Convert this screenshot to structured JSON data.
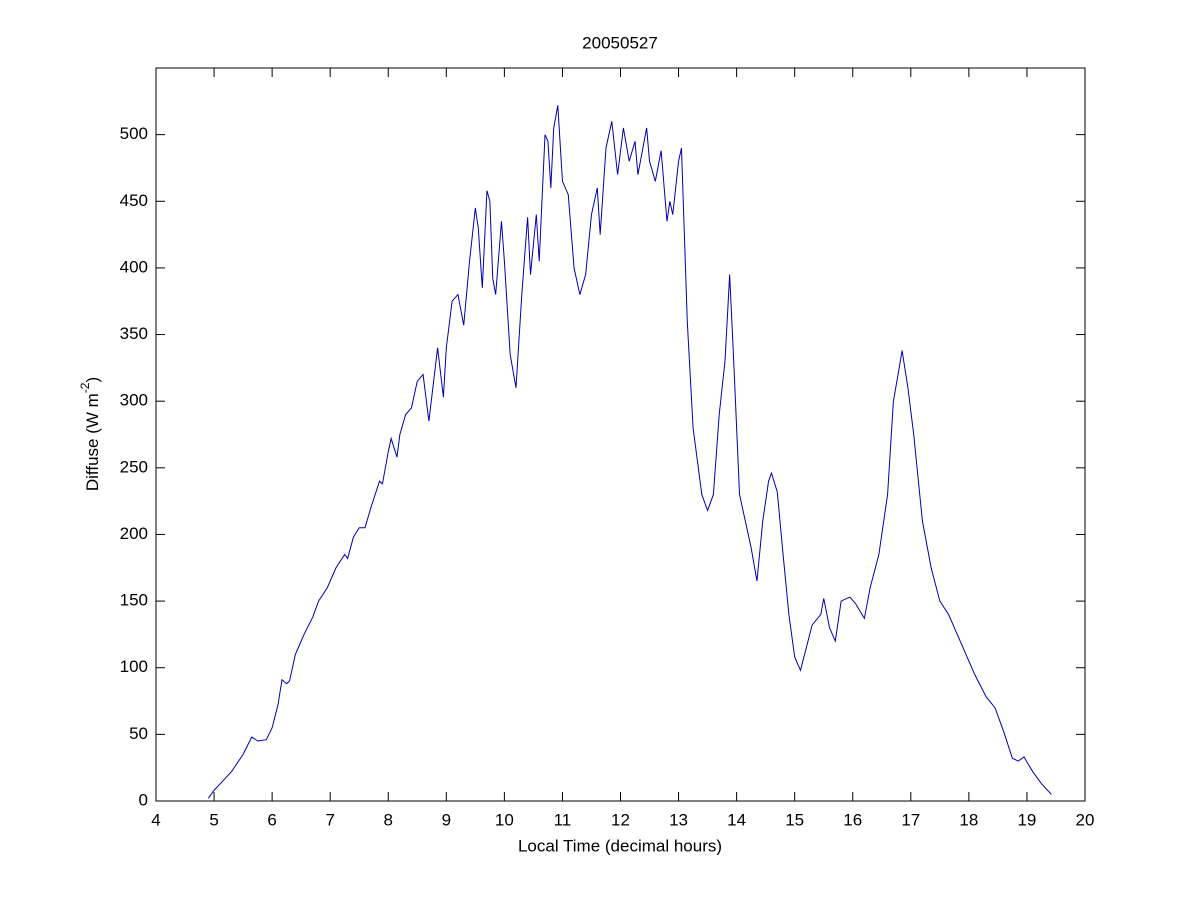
{
  "chart_data": {
    "type": "line",
    "title": "20050527",
    "xlabel": "Local Time (decimal hours)",
    "ylabel": [
      "Diffuse (W m",
      "-2",
      ")"
    ],
    "xlim": [
      4,
      20
    ],
    "ylim": [
      0,
      550
    ],
    "xticks": [
      4,
      5,
      6,
      7,
      8,
      9,
      10,
      11,
      12,
      13,
      14,
      15,
      16,
      17,
      18,
      19,
      20
    ],
    "yticks": [
      0,
      50,
      100,
      150,
      200,
      250,
      300,
      350,
      400,
      450,
      500
    ],
    "grid": false,
    "series": [
      {
        "color": "#0000b0",
        "x": [
          4.9,
          5.0,
          5.3,
          5.5,
          5.65,
          5.75,
          5.9,
          6.0,
          6.1,
          6.17,
          6.25,
          6.3,
          6.4,
          6.55,
          6.7,
          6.8,
          6.95,
          7.1,
          7.25,
          7.3,
          7.4,
          7.5,
          7.6,
          7.7,
          7.85,
          7.9,
          8.0,
          8.05,
          8.15,
          8.2,
          8.3,
          8.4,
          8.5,
          8.6,
          8.7,
          8.85,
          8.95,
          9.0,
          9.1,
          9.2,
          9.3,
          9.4,
          9.5,
          9.55,
          9.62,
          9.7,
          9.75,
          9.8,
          9.85,
          9.95,
          10.0,
          10.1,
          10.2,
          10.3,
          10.4,
          10.45,
          10.55,
          10.6,
          10.7,
          10.75,
          10.8,
          10.85,
          10.92,
          11.0,
          11.1,
          11.2,
          11.3,
          11.4,
          11.5,
          11.6,
          11.65,
          11.75,
          11.85,
          11.95,
          12.05,
          12.15,
          12.25,
          12.3,
          12.45,
          12.5,
          12.6,
          12.7,
          12.8,
          12.85,
          12.9,
          13.0,
          13.05,
          13.15,
          13.25,
          13.4,
          13.5,
          13.6,
          13.7,
          13.8,
          13.88,
          13.95,
          14.05,
          14.15,
          14.25,
          14.35,
          14.45,
          14.55,
          14.6,
          14.7,
          14.8,
          14.9,
          15.0,
          15.1,
          15.2,
          15.3,
          15.45,
          15.5,
          15.6,
          15.7,
          15.8,
          15.95,
          16.05,
          16.2,
          16.3,
          16.45,
          16.6,
          16.7,
          16.8,
          16.85,
          16.95,
          17.05,
          17.2,
          17.35,
          17.5,
          17.65,
          17.8,
          17.95,
          18.1,
          18.3,
          18.45,
          18.6,
          18.75,
          18.85,
          18.95,
          19.1,
          19.25,
          19.42
        ],
        "values": [
          2,
          8,
          22,
          35,
          48,
          45,
          46,
          55,
          72,
          91,
          88,
          90,
          110,
          125,
          138,
          150,
          160,
          175,
          185,
          182,
          198,
          205,
          205,
          220,
          240,
          238,
          262,
          272,
          258,
          275,
          290,
          295,
          315,
          320,
          285,
          340,
          303,
          340,
          375,
          380,
          357,
          405,
          445,
          430,
          385,
          458,
          450,
          392,
          380,
          435,
          405,
          335,
          310,
          380,
          438,
          395,
          440,
          405,
          500,
          495,
          460,
          505,
          522,
          465,
          455,
          400,
          380,
          395,
          440,
          460,
          425,
          490,
          510,
          470,
          505,
          480,
          495,
          470,
          505,
          480,
          465,
          488,
          435,
          450,
          440,
          480,
          490,
          360,
          280,
          230,
          218,
          230,
          290,
          330,
          395,
          330,
          230,
          210,
          190,
          165,
          210,
          240,
          246,
          232,
          185,
          140,
          108,
          98,
          115,
          132,
          140,
          152,
          130,
          120,
          150,
          153,
          148,
          137,
          160,
          185,
          230,
          300,
          325,
          338,
          310,
          275,
          210,
          175,
          150,
          140,
          125,
          110,
          95,
          78,
          70,
          52,
          32,
          30,
          33,
          22,
          13,
          5
        ]
      }
    ]
  }
}
